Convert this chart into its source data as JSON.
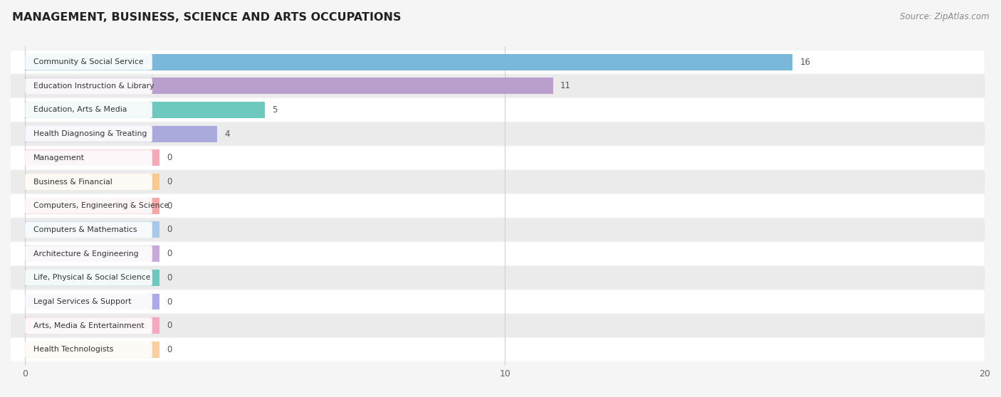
{
  "title": "MANAGEMENT, BUSINESS, SCIENCE AND ARTS OCCUPATIONS",
  "source": "Source: ZipAtlas.com",
  "categories": [
    "Community & Social Service",
    "Education Instruction & Library",
    "Education, Arts & Media",
    "Health Diagnosing & Treating",
    "Management",
    "Business & Financial",
    "Computers, Engineering & Science",
    "Computers & Mathematics",
    "Architecture & Engineering",
    "Life, Physical & Social Science",
    "Legal Services & Support",
    "Arts, Media & Entertainment",
    "Health Technologists"
  ],
  "values": [
    16,
    11,
    5,
    4,
    0,
    0,
    0,
    0,
    0,
    0,
    0,
    0,
    0
  ],
  "bar_colors": [
    "#7ab8d9",
    "#b99fcc",
    "#6dc9be",
    "#aaaadd",
    "#f5a8b8",
    "#f9c990",
    "#f5a8a8",
    "#a8c8e8",
    "#c8aad8",
    "#6dc9be",
    "#aaaae8",
    "#f5a8c0",
    "#f9cfa0"
  ],
  "xlim_max": 20,
  "xticks": [
    0,
    10,
    20
  ],
  "background_color": "#f5f5f5",
  "row_even_color": "#ffffff",
  "row_odd_color": "#ebebeb",
  "grid_color": "#d0d0d0",
  "label_bg_color": "#ffffff",
  "zero_bar_width": 2.8
}
